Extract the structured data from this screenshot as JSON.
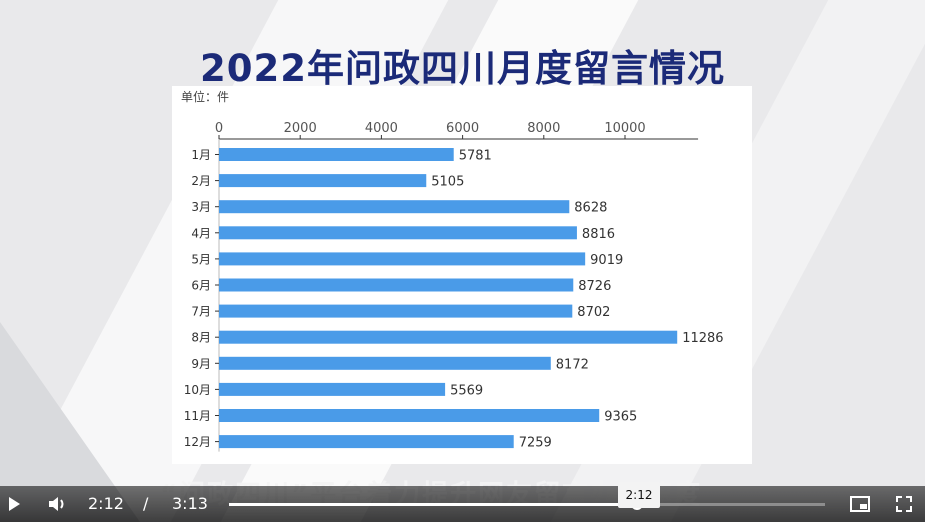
{
  "title": "2022年问政四川月度留言情况",
  "unit_label": "单位：件",
  "subtitle_caption": "“问政四川”平台着力提升网友留言办理速度",
  "chart_data": {
    "type": "bar",
    "orientation": "horizontal",
    "title": "2022年问政四川月度留言情况",
    "unit": "单位：件",
    "categories": [
      "1月",
      "2月",
      "3月",
      "4月",
      "5月",
      "6月",
      "7月",
      "8月",
      "9月",
      "10月",
      "11月",
      "12月"
    ],
    "values": [
      5781,
      5105,
      8628,
      8816,
      9019,
      8726,
      8702,
      11286,
      8172,
      5569,
      9365,
      7259
    ],
    "x_ticks": [
      0,
      2000,
      4000,
      6000,
      8000,
      10000
    ],
    "xlim": [
      0,
      11800
    ],
    "axis_position": "top",
    "bar_color": "#4a9be8",
    "grid": false
  },
  "player": {
    "current_time": "2:12",
    "separator": "/",
    "duration": "3:13",
    "tooltip_time": "2:12",
    "progress": 0.684,
    "icons": {
      "play": "play-icon",
      "volume": "volume-icon",
      "pip": "picture-in-picture-icon",
      "fullscreen": "fullscreen-icon"
    }
  },
  "colors": {
    "title": "#1b2a78",
    "bar": "#4a9be8"
  }
}
